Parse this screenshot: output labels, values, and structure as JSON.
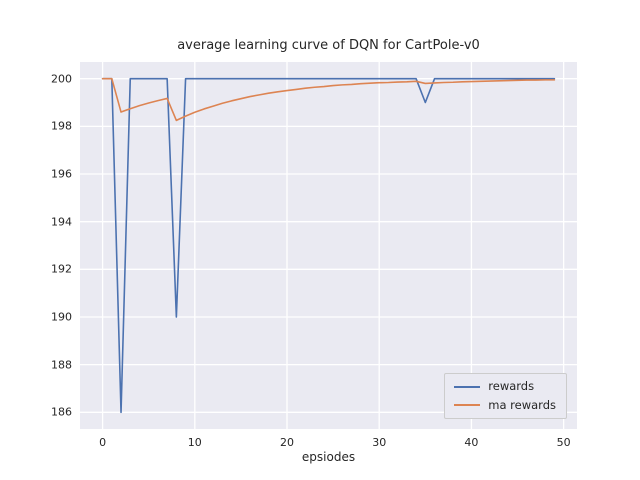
{
  "chart_data": {
    "type": "line",
    "title": "average learning curve of DQN for CartPole-v0",
    "xlabel": "epsiodes",
    "ylabel": "",
    "grid": true,
    "plot_bg_color": "#eaeaf2",
    "grid_color": "#ffffff",
    "legend_position": "lower right",
    "xlim": [
      -2.45,
      51.45
    ],
    "ylim": [
      185.3,
      200.7
    ],
    "xticks": [
      0,
      10,
      20,
      30,
      40,
      50
    ],
    "yticks": [
      186,
      188,
      190,
      192,
      194,
      196,
      198,
      200
    ],
    "x": [
      0,
      1,
      2,
      3,
      4,
      5,
      6,
      7,
      8,
      9,
      10,
      11,
      12,
      13,
      14,
      15,
      16,
      17,
      18,
      19,
      20,
      21,
      22,
      23,
      24,
      25,
      26,
      27,
      28,
      29,
      30,
      31,
      32,
      33,
      34,
      35,
      36,
      37,
      38,
      39,
      40,
      41,
      42,
      43,
      44,
      45,
      46,
      47,
      48,
      49
    ],
    "series": [
      {
        "name": "rewards",
        "color": "#4c72b0",
        "values": [
          200,
          200,
          186,
          200,
          200,
          200,
          200,
          200,
          190,
          200,
          200,
          200,
          200,
          200,
          200,
          200,
          200,
          200,
          200,
          200,
          200,
          200,
          200,
          200,
          200,
          200,
          200,
          200,
          200,
          200,
          200,
          200,
          200,
          200,
          200,
          199,
          200,
          200,
          200,
          200,
          200,
          200,
          200,
          200,
          200,
          200,
          200,
          200,
          200,
          200
        ]
      },
      {
        "name": "ma rewards",
        "color": "#dd8452",
        "values": [
          200,
          200,
          198.6,
          198.74,
          198.87,
          198.98,
          199.08,
          199.17,
          198.25,
          198.43,
          198.59,
          198.73,
          198.85,
          198.97,
          199.07,
          199.16,
          199.25,
          199.32,
          199.39,
          199.45,
          199.5,
          199.55,
          199.6,
          199.64,
          199.67,
          199.71,
          199.74,
          199.76,
          199.79,
          199.81,
          199.83,
          199.84,
          199.86,
          199.87,
          199.89,
          199.8,
          199.82,
          199.84,
          199.85,
          199.87,
          199.88,
          199.89,
          199.9,
          199.91,
          199.92,
          199.93,
          199.94,
          199.94,
          199.95,
          199.95
        ]
      }
    ]
  }
}
